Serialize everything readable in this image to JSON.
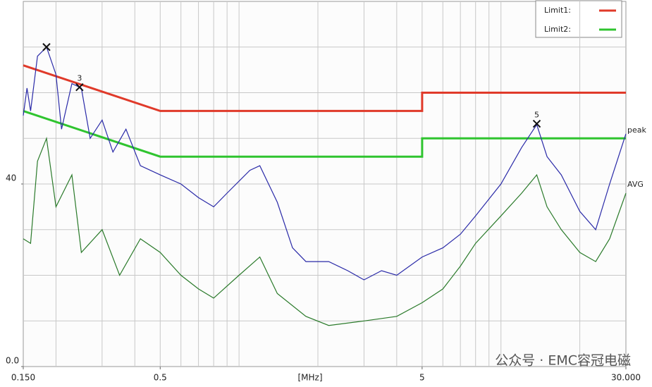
{
  "chart_data": {
    "type": "line",
    "x_label": "[MHz]",
    "xlog": true,
    "xlim": [
      0.15,
      30
    ],
    "ylim": [
      0,
      80
    ],
    "xticks": [
      {
        "value": 0.15,
        "label": "0.150"
      },
      0.5,
      5,
      {
        "value": 30,
        "label": "30.000"
      }
    ],
    "xgrid": [
      0.2,
      0.3,
      0.4,
      0.5,
      0.6,
      0.7,
      0.8,
      0.9,
      1,
      2,
      3,
      4,
      5,
      6,
      7,
      8,
      9,
      10,
      20
    ],
    "yticks": [
      {
        "value": 0,
        "label": "0.0"
      },
      40
    ],
    "ygrid": [
      10,
      20,
      30,
      40,
      50,
      60,
      70
    ],
    "series": [
      {
        "name": "Limit1:",
        "color": "#e03a2a",
        "legend": true,
        "x": [
          0.15,
          0.5,
          5,
          5,
          30
        ],
        "values": [
          66,
          56,
          56,
          60,
          60
        ]
      },
      {
        "name": "Limit2:",
        "color": "#2fc42f",
        "legend": true,
        "x": [
          0.15,
          0.5,
          5,
          5,
          30
        ],
        "values": [
          56,
          46,
          46,
          50,
          50
        ]
      },
      {
        "name": "peak",
        "color": "#2a2aa8",
        "legend": false,
        "x": [
          0.15,
          0.155,
          0.16,
          0.17,
          0.184,
          0.2,
          0.21,
          0.23,
          0.25,
          0.27,
          0.3,
          0.33,
          0.37,
          0.42,
          0.5,
          0.6,
          0.7,
          0.8,
          0.9,
          1.1,
          1.2,
          1.4,
          1.6,
          1.8,
          2.2,
          2.6,
          3,
          3.5,
          4,
          5,
          6,
          7,
          8,
          10,
          12,
          13.7,
          15,
          17,
          20,
          23,
          26,
          30
        ],
        "values": [
          55,
          61,
          56,
          68,
          70,
          64,
          52,
          62,
          61,
          50,
          54,
          47,
          52,
          44,
          42,
          40,
          37,
          35,
          38,
          43,
          44,
          36,
          26,
          23,
          23,
          21,
          19,
          21,
          20,
          24,
          26,
          29,
          33,
          40,
          48,
          53,
          46,
          42,
          34,
          30,
          40,
          51
        ]
      },
      {
        "name": "AVG",
        "color": "#2a7a2a",
        "legend": false,
        "x": [
          0.15,
          0.16,
          0.17,
          0.184,
          0.2,
          0.23,
          0.25,
          0.3,
          0.35,
          0.42,
          0.5,
          0.6,
          0.7,
          0.8,
          1,
          1.2,
          1.4,
          1.8,
          2.2,
          3,
          4,
          5,
          6,
          7,
          8,
          10,
          12,
          13.7,
          15,
          17,
          20,
          23,
          26,
          30
        ],
        "values": [
          28,
          27,
          45,
          50,
          35,
          42,
          25,
          30,
          20,
          28,
          25,
          20,
          17,
          15,
          20,
          24,
          16,
          11,
          9,
          10,
          11,
          14,
          17,
          22,
          27,
          33,
          38,
          42,
          35,
          30,
          25,
          23,
          28,
          38
        ]
      }
    ],
    "markers": [
      {
        "x": 0.184,
        "value": 70
      },
      {
        "label": "3",
        "x": 0.246,
        "value": 61.2
      },
      {
        "label": "5",
        "x": 13.7,
        "value": 53.2
      }
    ]
  },
  "watermark": "公众号 · EMC容冠电磁"
}
